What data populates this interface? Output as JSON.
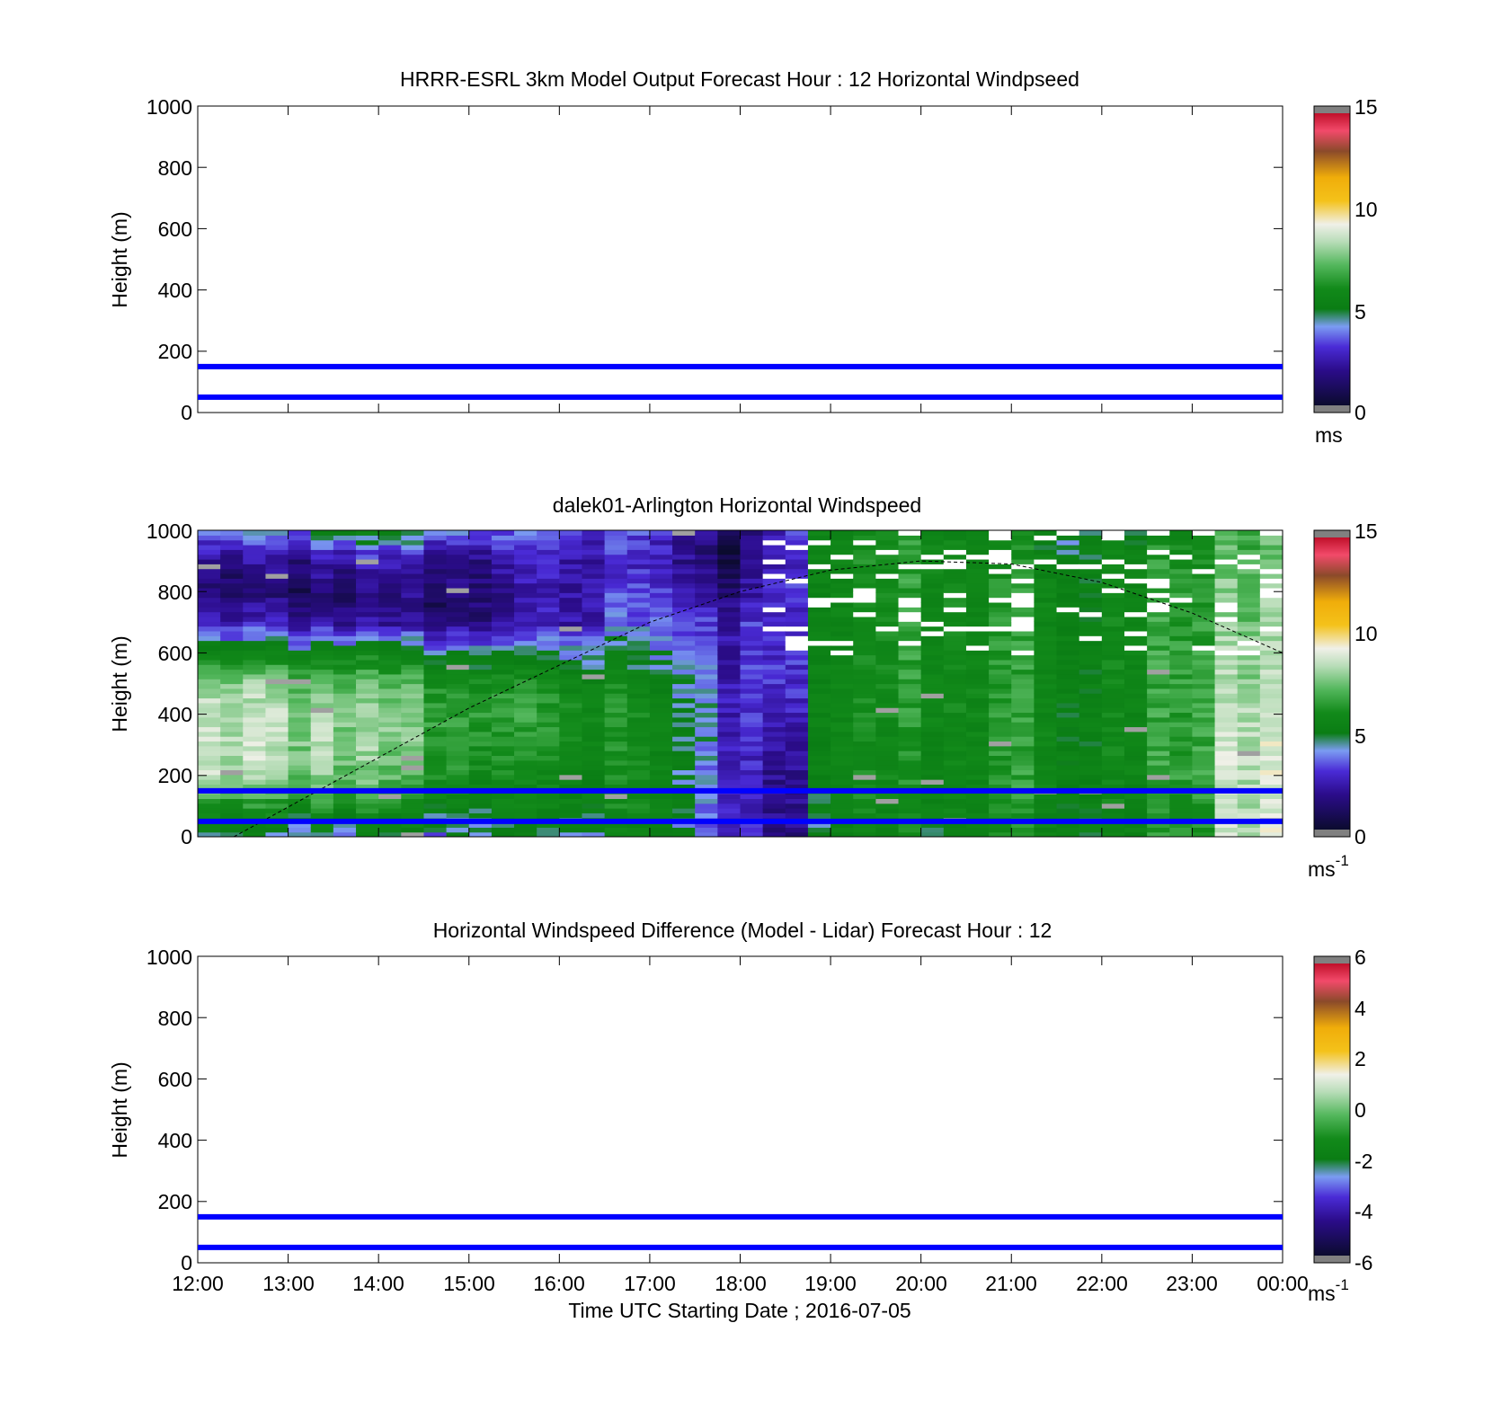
{
  "colors": {
    "reference_lines": "#0000ff",
    "axis": "#000000",
    "empty_fill": "#ffffff",
    "cmap_stops": [
      "#808080",
      "#0b0b2e",
      "#2b0c8a",
      "#4a2bd6",
      "#7b9cf2",
      "#128a1a",
      "#0a7d14",
      "#53b75c",
      "#b8ddb8",
      "#f0f0e8",
      "#f4c21a",
      "#f0ad0a",
      "#8b4a2a",
      "#f24a6a",
      "#c0102a",
      "#808080"
    ]
  },
  "xaxis": {
    "label": "Time UTC  Starting Date ; 2016-07-05",
    "ticks": [
      "12:00",
      "13:00",
      "14:00",
      "15:00",
      "16:00",
      "17:00",
      "18:00",
      "19:00",
      "20:00",
      "21:00",
      "22:00",
      "23:00",
      "00:00"
    ]
  },
  "chart_data": [
    {
      "type": "heatmap",
      "title": "HRRR-ESRL 3km Model Output   Forecast Hour : 12 Horizontal Windpseed",
      "ylabel": "Height (m)",
      "xlim": [
        "12:00",
        "00:00"
      ],
      "ylim": [
        0,
        1000
      ],
      "yticks": [
        "0",
        "200",
        "400",
        "600",
        "800",
        "1000"
      ],
      "colorbar": {
        "ticks": [
          "0",
          "5",
          "10",
          "15"
        ],
        "range": [
          0,
          15
        ],
        "unit": "ms"
      },
      "reference_lines_m": [
        50,
        150
      ],
      "values": []
    },
    {
      "type": "heatmap",
      "title": "dalek01-Arlington  Horizontal Windspeed",
      "ylabel": "Height (m)",
      "xlim": [
        "12:00",
        "00:00"
      ],
      "ylim": [
        0,
        1000
      ],
      "yticks": [
        "0",
        "200",
        "400",
        "600",
        "800",
        "1000"
      ],
      "colorbar": {
        "ticks": [
          "0",
          "5",
          "10",
          "15"
        ],
        "range": [
          0,
          15
        ],
        "unit": "ms",
        "unit_exp": "-1"
      },
      "reference_lines_m": [
        50,
        150
      ],
      "boundary_layer_curve": [
        [
          12.4,
          0
        ],
        [
          15.0,
          420
        ],
        [
          17.0,
          700
        ],
        [
          18.0,
          800
        ],
        [
          19.0,
          870
        ],
        [
          20.0,
          900
        ],
        [
          21.0,
          890
        ],
        [
          22.0,
          830
        ],
        [
          23.0,
          730
        ],
        [
          24.0,
          600
        ]
      ],
      "columns_hours": [
        12.0,
        14.0,
        16.0,
        17.0,
        18.0,
        18.5,
        19.0,
        20.0,
        21.0,
        22.0,
        23.0,
        23.5,
        24.0
      ],
      "rows_heights_m": [
        0,
        100,
        200,
        300,
        400,
        500,
        600,
        700,
        800,
        900,
        1000
      ],
      "values": [
        [
          4.0,
          4.0,
          4.5,
          4.5,
          3.0,
          1.5,
          4.5,
          5.0,
          5.5,
          5.5,
          6.5,
          9.0,
          9.5
        ],
        [
          6.0,
          5.5,
          5.5,
          5.0,
          3.0,
          1.5,
          5.0,
          5.5,
          6.0,
          5.5,
          6.5,
          9.0,
          9.5
        ],
        [
          8.5,
          7.0,
          5.5,
          5.0,
          3.0,
          1.5,
          5.0,
          5.5,
          6.0,
          5.5,
          7.0,
          9.0,
          9.5
        ],
        [
          8.5,
          7.5,
          6.0,
          5.0,
          3.0,
          2.0,
          5.0,
          5.5,
          6.0,
          5.5,
          7.0,
          9.0,
          9.5
        ],
        [
          8.5,
          7.5,
          6.5,
          5.0,
          3.0,
          2.5,
          5.0,
          6.0,
          6.0,
          5.5,
          7.0,
          9.0,
          9.5
        ],
        [
          8.0,
          7.0,
          6.0,
          4.5,
          3.0,
          3.0,
          5.0,
          6.0,
          6.0,
          5.5,
          7.0,
          8.5,
          9.0
        ],
        [
          5.0,
          5.0,
          4.5,
          3.5,
          3.0,
          3.0,
          5.0,
          6.0,
          6.0,
          5.5,
          7.0,
          8.5,
          9.0
        ],
        [
          2.5,
          1.5,
          2.5,
          3.0,
          3.0,
          3.0,
          5.0,
          6.0,
          6.0,
          5.5,
          7.0,
          8.0,
          8.5
        ],
        [
          1.0,
          1.0,
          2.5,
          2.5,
          2.0,
          3.0,
          5.0,
          6.0,
          6.0,
          5.5,
          7.0,
          8.0,
          8.5
        ],
        [
          1.5,
          2.0,
          2.5,
          2.0,
          1.0,
          3.0,
          5.0,
          6.0,
          5.5,
          5.5,
          6.5,
          7.5,
          8.0
        ],
        [
          3.5,
          4.5,
          3.5,
          2.5,
          1.0,
          3.0,
          5.0,
          6.0,
          5.0,
          5.0,
          6.0,
          7.5,
          8.0
        ]
      ]
    },
    {
      "type": "heatmap",
      "title": "Horizontal Windspeed Difference (Model - Lidar) Forecast Hour : 12",
      "ylabel": "Height (m)",
      "xlim": [
        "12:00",
        "00:00"
      ],
      "ylim": [
        0,
        1000
      ],
      "yticks": [
        "0",
        "200",
        "400",
        "600",
        "800",
        "1000"
      ],
      "colorbar": {
        "ticks": [
          "-6",
          "-4",
          "-2",
          "0",
          "2",
          "4",
          "6"
        ],
        "range": [
          -6,
          6
        ],
        "unit": "ms",
        "unit_exp": "-1"
      },
      "reference_lines_m": [
        50,
        150
      ],
      "values": []
    }
  ]
}
